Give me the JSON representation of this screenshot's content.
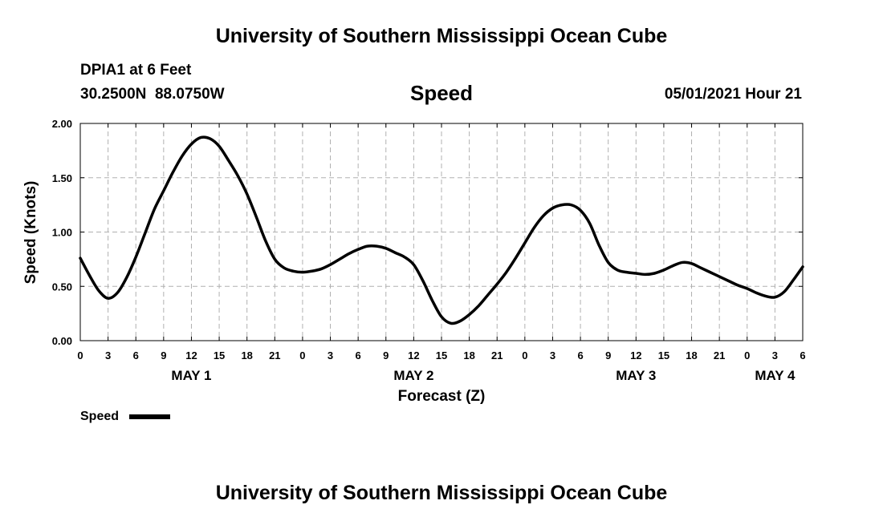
{
  "header": {
    "title_top": "University of Southern Mississippi Ocean Cube",
    "station": "DPIA1 at 6 Feet",
    "coordinates": "30.2500N  88.0750W",
    "plot_title": "Speed",
    "datetime": "05/01/2021 Hour 21",
    "title_bottom": "University of Southern Mississippi Ocean Cube"
  },
  "chart_data": {
    "type": "line",
    "xlabel": "Forecast (Z)",
    "ylabel": "Speed (Knots)",
    "xlim": [
      0,
      78
    ],
    "ylim": [
      0,
      2
    ],
    "grid": true,
    "legend_position": "bottom-left",
    "y_ticks": [
      "0.00",
      "0.50",
      "1.00",
      "1.50",
      "2.00"
    ],
    "x_tick_labels": [
      "0",
      "3",
      "6",
      "9",
      "12",
      "15",
      "18",
      "21",
      "0",
      "3",
      "6",
      "9",
      "12",
      "15",
      "18",
      "21",
      "0",
      "3",
      "6",
      "9",
      "12",
      "15",
      "18",
      "21",
      "0",
      "3",
      "6"
    ],
    "day_labels": [
      {
        "label": "MAY 1",
        "hour": 12
      },
      {
        "label": "MAY 2",
        "hour": 36
      },
      {
        "label": "MAY 3",
        "hour": 60
      },
      {
        "label": "MAY 4",
        "hour": 75
      }
    ],
    "series": [
      {
        "name": "Speed",
        "color": "#000000",
        "points": [
          [
            0,
            0.76
          ],
          [
            1,
            0.6
          ],
          [
            2,
            0.46
          ],
          [
            3,
            0.39
          ],
          [
            4,
            0.44
          ],
          [
            5,
            0.58
          ],
          [
            6,
            0.77
          ],
          [
            7,
            0.99
          ],
          [
            8,
            1.21
          ],
          [
            9,
            1.38
          ],
          [
            10,
            1.55
          ],
          [
            11,
            1.7
          ],
          [
            12,
            1.81
          ],
          [
            13,
            1.87
          ],
          [
            14,
            1.86
          ],
          [
            15,
            1.79
          ],
          [
            16,
            1.66
          ],
          [
            17,
            1.52
          ],
          [
            18,
            1.35
          ],
          [
            19,
            1.14
          ],
          [
            20,
            0.92
          ],
          [
            21,
            0.75
          ],
          [
            22,
            0.67
          ],
          [
            23,
            0.64
          ],
          [
            24,
            0.63
          ],
          [
            25,
            0.64
          ],
          [
            26,
            0.66
          ],
          [
            27,
            0.7
          ],
          [
            28,
            0.75
          ],
          [
            29,
            0.8
          ],
          [
            30,
            0.84
          ],
          [
            31,
            0.87
          ],
          [
            32,
            0.87
          ],
          [
            33,
            0.85
          ],
          [
            34,
            0.81
          ],
          [
            35,
            0.77
          ],
          [
            36,
            0.7
          ],
          [
            37,
            0.55
          ],
          [
            38,
            0.37
          ],
          [
            39,
            0.22
          ],
          [
            40,
            0.16
          ],
          [
            41,
            0.18
          ],
          [
            42,
            0.24
          ],
          [
            43,
            0.32
          ],
          [
            44,
            0.42
          ],
          [
            45,
            0.52
          ],
          [
            46,
            0.63
          ],
          [
            47,
            0.76
          ],
          [
            48,
            0.9
          ],
          [
            49,
            1.04
          ],
          [
            50,
            1.15
          ],
          [
            51,
            1.22
          ],
          [
            52,
            1.25
          ],
          [
            53,
            1.25
          ],
          [
            54,
            1.2
          ],
          [
            55,
            1.08
          ],
          [
            56,
            0.88
          ],
          [
            57,
            0.72
          ],
          [
            58,
            0.65
          ],
          [
            59,
            0.63
          ],
          [
            60,
            0.62
          ],
          [
            61,
            0.61
          ],
          [
            62,
            0.62
          ],
          [
            63,
            0.65
          ],
          [
            64,
            0.69
          ],
          [
            65,
            0.72
          ],
          [
            66,
            0.71
          ],
          [
            67,
            0.67
          ],
          [
            68,
            0.63
          ],
          [
            69,
            0.59
          ],
          [
            70,
            0.55
          ],
          [
            71,
            0.51
          ],
          [
            72,
            0.48
          ],
          [
            73,
            0.44
          ],
          [
            74,
            0.41
          ],
          [
            75,
            0.4
          ],
          [
            76,
            0.45
          ],
          [
            77,
            0.56
          ],
          [
            78,
            0.68
          ]
        ]
      }
    ]
  }
}
